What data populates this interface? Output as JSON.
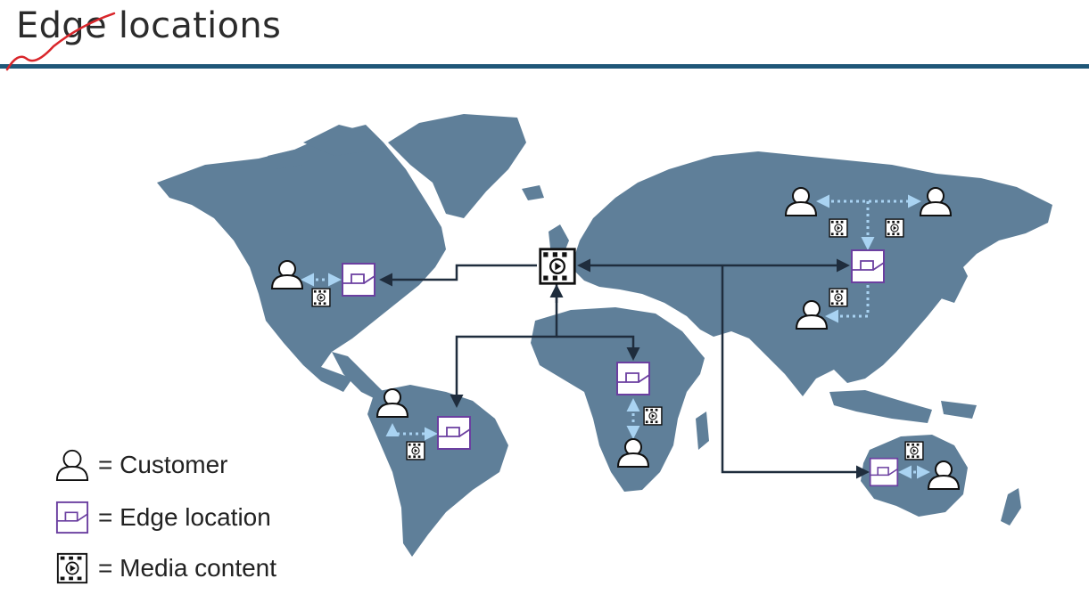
{
  "title": "Edge locations",
  "legend": [
    {
      "icon": "customer-icon",
      "label": "= Customer"
    },
    {
      "icon": "edge-location-icon",
      "label": "= Edge location"
    },
    {
      "icon": "media-content-icon",
      "label": "= Media content"
    }
  ],
  "colors": {
    "map_land": "#5f7f99",
    "title_rule": "#1f5778",
    "edge_purple": "#6b3fa0",
    "connector": "#1f2d3d",
    "dotted_link": "#a9d3f2",
    "annotation_red": "#d9262b"
  },
  "regions": [
    {
      "name": "north-america",
      "customers": 1,
      "edge_locations": 1,
      "media_content": 1
    },
    {
      "name": "south-america",
      "customers": 1,
      "edge_locations": 1,
      "media_content": 1
    },
    {
      "name": "africa",
      "customers": 1,
      "edge_locations": 1,
      "media_content": 1
    },
    {
      "name": "asia",
      "customers": 3,
      "edge_locations": 1,
      "media_content": 3
    },
    {
      "name": "australia",
      "customers": 1,
      "edge_locations": 1,
      "media_content": 1
    }
  ],
  "origin": {
    "name": "europe",
    "icon": "media-content-icon"
  }
}
